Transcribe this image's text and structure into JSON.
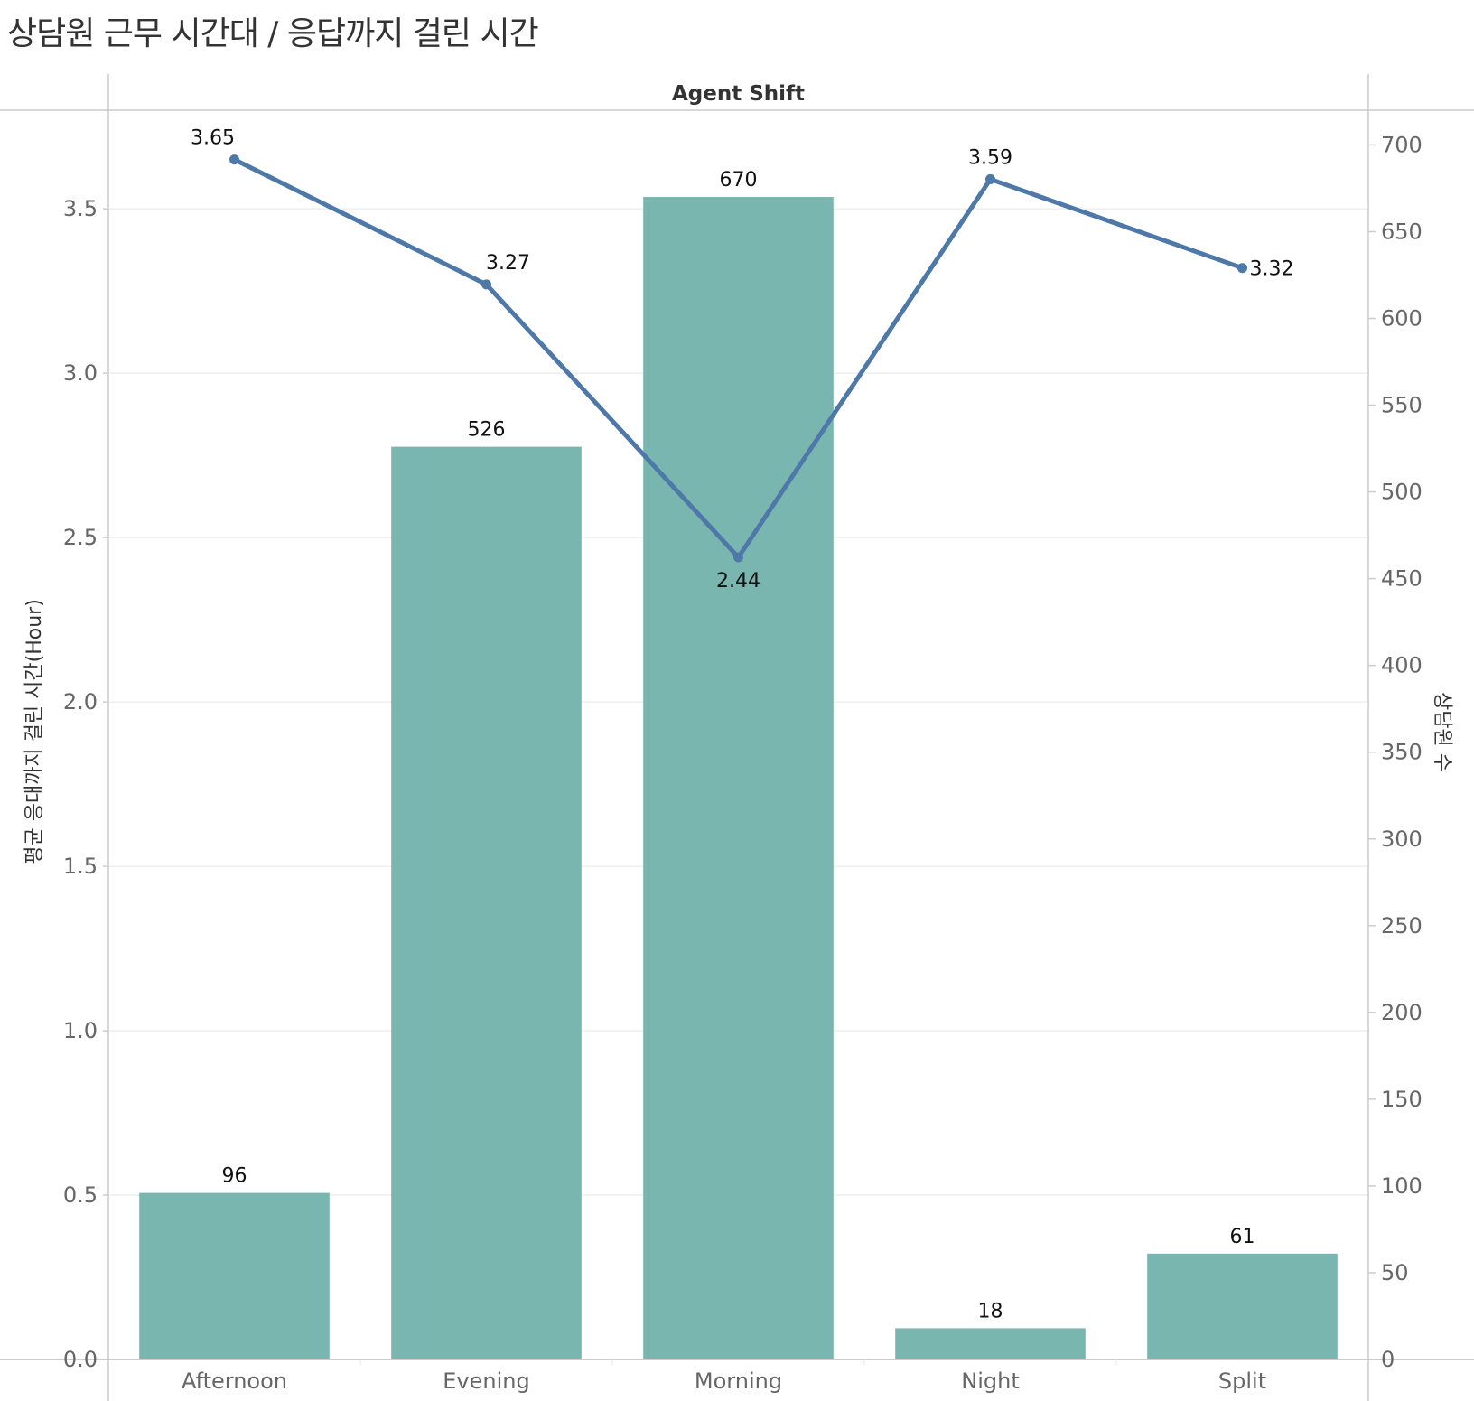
{
  "title": "상담원 근무 시간대 / 응답까지 걸린 시간",
  "chart_data": {
    "type": "bar",
    "header": "Agent Shift",
    "categories": [
      "Afternoon",
      "Evening",
      "Morning",
      "Night",
      "Split"
    ],
    "series": [
      {
        "name": "상담원 수",
        "type": "bar",
        "axis": "right",
        "values": [
          96,
          526,
          670,
          18,
          61
        ],
        "color": "#7ab6b0"
      },
      {
        "name": "평균 응대까지 걸린 시간(Hour)",
        "type": "line",
        "axis": "left",
        "values": [
          3.65,
          3.27,
          2.44,
          3.59,
          3.32
        ],
        "color": "#4e78a8"
      }
    ],
    "data_labels": {
      "bar": [
        "96",
        "526",
        "670",
        "18",
        "61"
      ],
      "line": [
        "3.65",
        "3.27",
        "2.44",
        "3.59",
        "3.32"
      ]
    },
    "y_left": {
      "label": "평균 응대까지 걸린 시간(Hour)",
      "range": [
        0,
        3.8
      ],
      "ticks": [
        "0.0",
        "0.5",
        "1.0",
        "1.5",
        "2.0",
        "2.5",
        "3.0",
        "3.5"
      ]
    },
    "y_right": {
      "label": "상담원 수",
      "range": [
        0,
        720
      ],
      "ticks": [
        "0",
        "50",
        "100",
        "150",
        "200",
        "250",
        "300",
        "350",
        "400",
        "450",
        "500",
        "550",
        "600",
        "650",
        "700"
      ]
    },
    "grid": true
  }
}
